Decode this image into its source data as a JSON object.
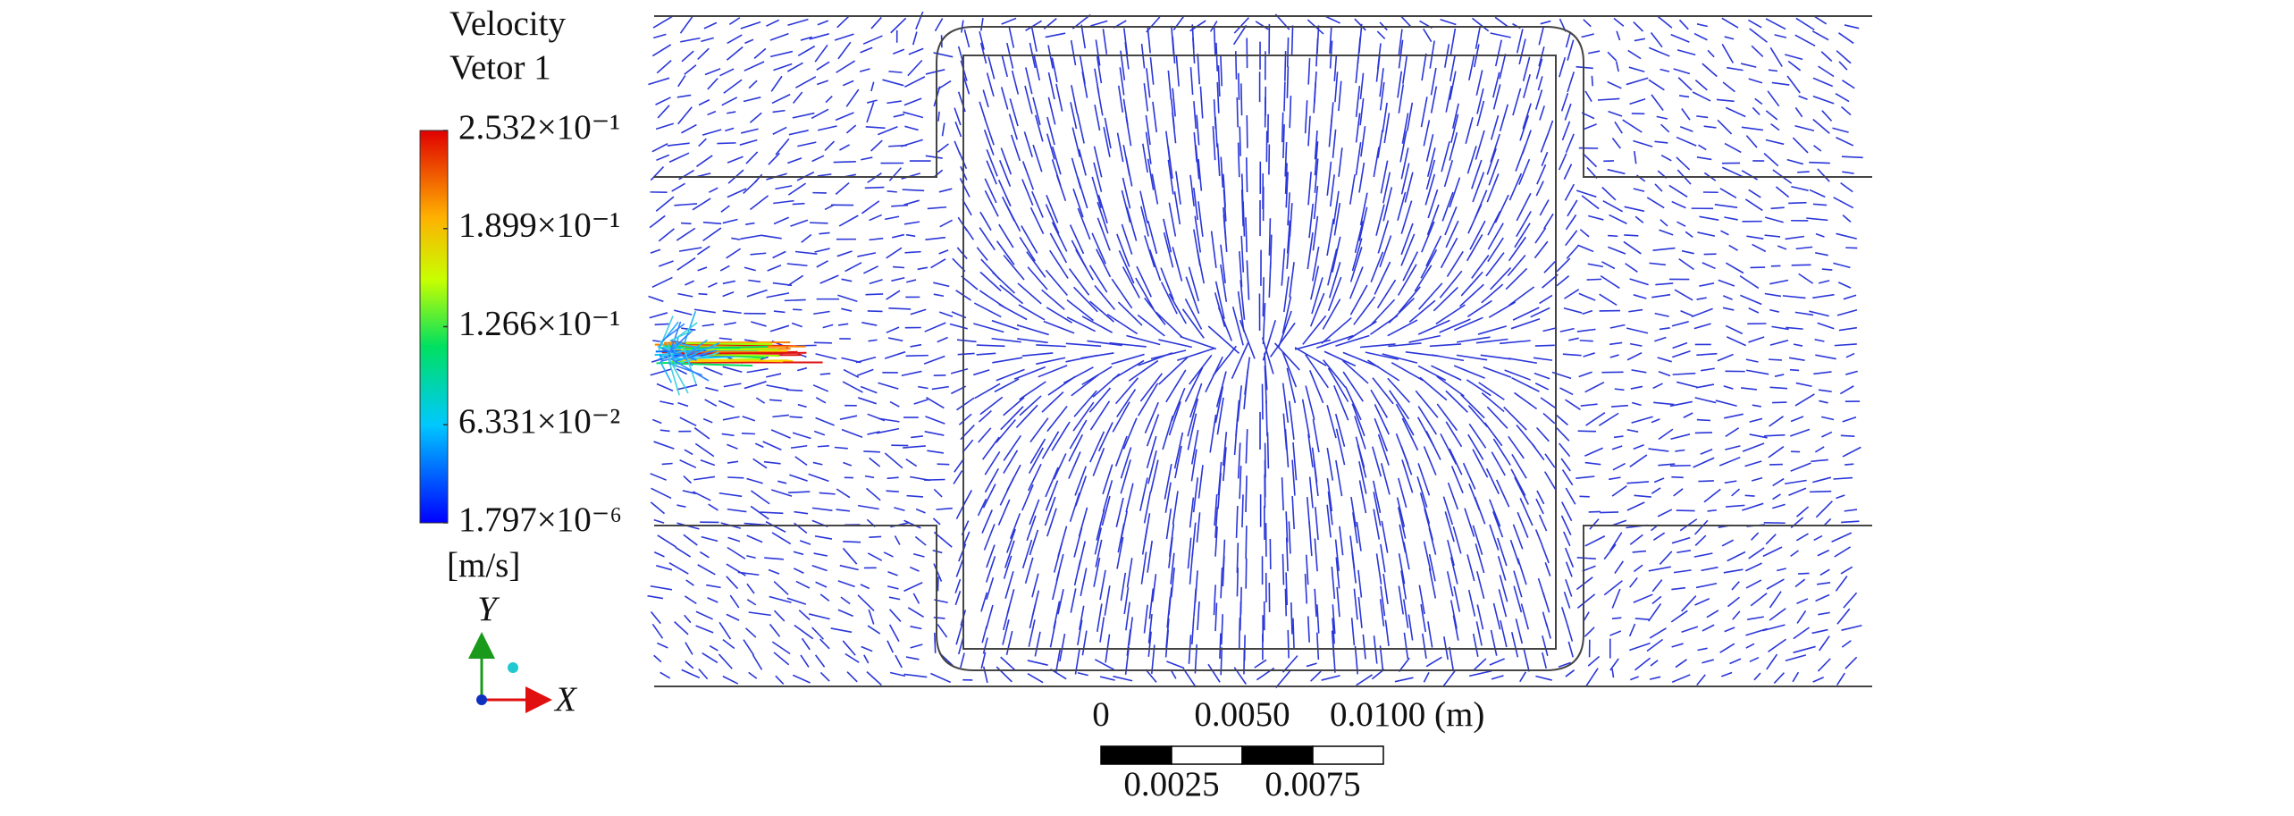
{
  "legend": {
    "title": [
      "Velocity",
      "Vetor 1"
    ],
    "ticks": [
      {
        "value": 0.2532,
        "label": "2.532×10⁻¹"
      },
      {
        "value": 0.1899,
        "label": "1.899×10⁻¹"
      },
      {
        "value": 0.1266,
        "label": "1.266×10⁻¹"
      },
      {
        "value": 0.06331,
        "label": "6.331×10⁻²"
      },
      {
        "value": 1.797e-06,
        "label": "1.797×10⁻⁶"
      }
    ],
    "unit": "[m/s]"
  },
  "triad": {
    "y": "Y",
    "x": "X"
  },
  "scale_bar": {
    "top": [
      0,
      {
        "value": 0.005,
        "label": "0.0050"
      },
      {
        "value": 0.01,
        "label": "0.0100 (m)"
      }
    ],
    "bottom": [
      {
        "value": 0.0025,
        "label": "0.0025"
      },
      {
        "value": 0.0075,
        "label": "0.0075"
      }
    ]
  }
}
